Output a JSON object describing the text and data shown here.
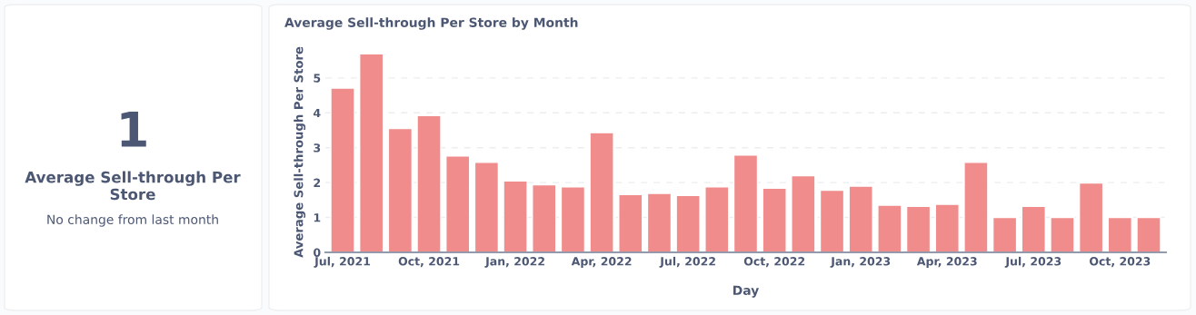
{
  "chart_data": [
    {
      "type": "other",
      "values": [
        1
      ],
      "data_labels": true,
      "title": "Average Sell-through Per Store",
      "subtitle": "No change from last month"
    },
    {
      "type": "bar",
      "title": "Average Sell-through Per Store by Month",
      "xlabel": "Day",
      "ylabel": "Average Sell-through Per Store",
      "categories": [
        "Jul, 2021",
        null,
        null,
        "Oct, 2021",
        null,
        null,
        "Jan, 2022",
        null,
        null,
        "Apr, 2022",
        null,
        null,
        "Jul, 2022",
        null,
        null,
        "Oct, 2022",
        null,
        null,
        "Jan, 2023",
        null,
        null,
        "Apr, 2023",
        null,
        null,
        "Jul, 2023",
        null,
        null,
        "Oct, 2023",
        null
      ],
      "values": [
        4.71,
        5.69,
        3.55,
        3.92,
        2.76,
        2.58,
        2.05,
        1.94,
        1.88,
        3.43,
        1.66,
        1.69,
        1.63,
        1.88,
        2.79,
        1.84,
        2.2,
        1.78,
        1.9,
        1.35,
        1.32,
        1.38,
        2.58,
        1.0,
        1.32,
        1.0,
        1.99,
        1.0,
        1.0
      ],
      "color": "#f08c8c",
      "ylim": [
        0,
        5.75
      ],
      "yticks": [
        0,
        1,
        2,
        3,
        4,
        5
      ],
      "grid": "y"
    }
  ]
}
